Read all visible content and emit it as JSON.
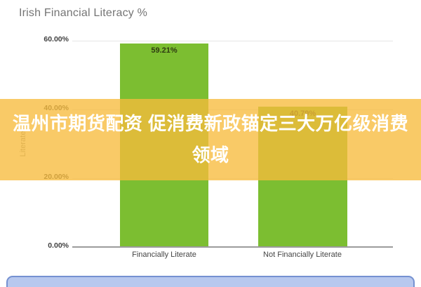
{
  "chart_data": {
    "type": "bar",
    "title": "Irish Financial Literacy %",
    "categories": [
      "Financially Literate",
      "Not Financially Literate"
    ],
    "values": [
      59.21,
      40.79
    ],
    "value_labels": [
      "59.21%",
      "40.79%"
    ],
    "xlabel": "",
    "ylabel": "Literate",
    "ylim": [
      0,
      60
    ],
    "ytick_labels": [
      "60.00%",
      "40.00%",
      "20.00%",
      "0.00%"
    ],
    "grid": true,
    "legend": "none",
    "bar_color": "#7cbe31",
    "gridline_color": "#e6e6e6",
    "axis_color": "#9c9c9c",
    "title_color": "#757575"
  },
  "watermark": {
    "line1": "温州市期货配资 促消费新政锚定三大万亿级消费",
    "line2": "领域",
    "full_text": "温州市期货配资 促消费新政锚定三大万亿级消费领域",
    "band_color": "#f7bb3c",
    "text_color": "#ffffff"
  },
  "footer": {
    "card_fill": "#b7c8ee",
    "card_border": "#7591d1"
  }
}
